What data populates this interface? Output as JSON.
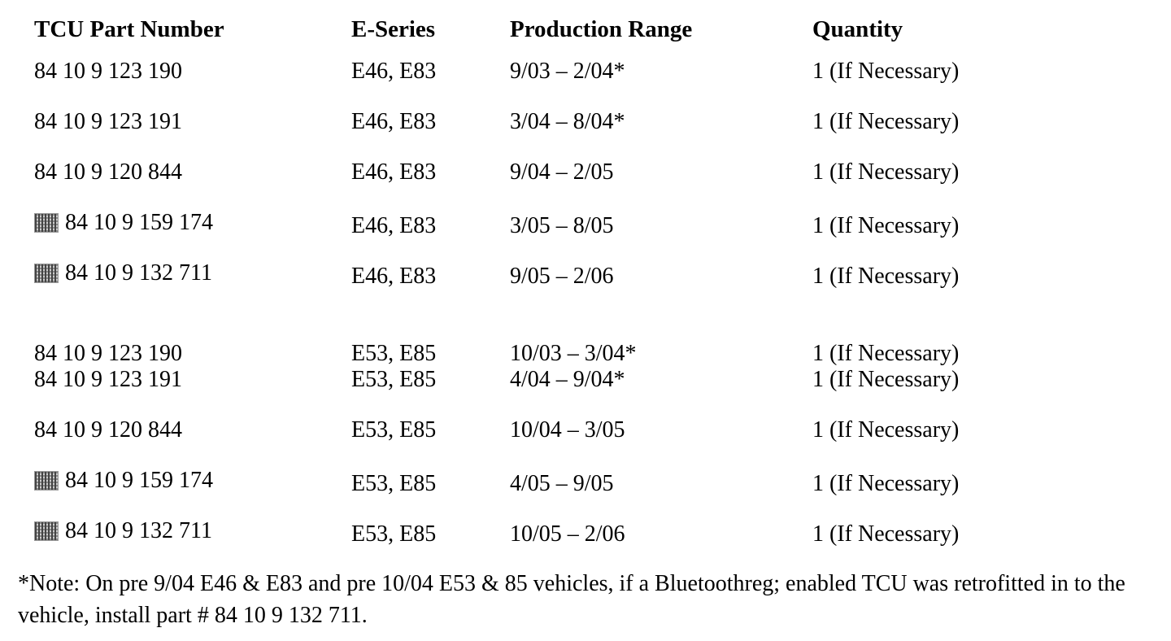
{
  "table": {
    "headers": [
      "TCU Part Number",
      "E-Series",
      "Production Range",
      "Quantity"
    ],
    "rows": [
      {
        "marker": false,
        "part": "84 10 9 123 190",
        "series": "E46, E83",
        "range": "9/03 – 2/04*",
        "qty": "1 (If Necessary)",
        "group_gap": false
      },
      {
        "marker": false,
        "part": "84 10 9 123 191",
        "series": "E46, E83",
        "range": "3/04 – 8/04*",
        "qty": "1 (If Necessary)",
        "group_gap": false
      },
      {
        "marker": false,
        "part": "84 10 9 120 844",
        "series": "E46, E83",
        "range": "9/04 – 2/05",
        "qty": "1 (If Necessary)",
        "group_gap": false
      },
      {
        "marker": true,
        "part": "84 10 9 159 174",
        "series": "E46, E83",
        "range": "3/05 – 8/05",
        "qty": "1 (If Necessary)",
        "group_gap": false
      },
      {
        "marker": true,
        "part": "84 10 9 132 711",
        "series": "E46, E83",
        "range": "9/05 – 2/06",
        "qty": "1 (If Necessary)",
        "group_gap": false
      },
      {
        "marker": false,
        "part": "84 10 9 123 190",
        "series": "E53, E85",
        "range": "10/03 – 3/04*",
        "qty": "1 (If Necessary)",
        "group_gap": true
      },
      {
        "marker": false,
        "part": "84 10 9 123 191",
        "series": "E53, E85",
        "range": "4/04 – 9/04*",
        "qty": "1 (If Necessary)",
        "group_gap": false
      },
      {
        "marker": false,
        "part": "84 10 9 120 844",
        "series": "E53, E85",
        "range": "10/04 – 3/05",
        "qty": "1 (If Necessary)",
        "group_gap": false
      },
      {
        "marker": true,
        "part": "84 10 9 159 174",
        "series": "E53, E85",
        "range": "4/05 – 9/05",
        "qty": "1 (If Necessary)",
        "group_gap": false
      },
      {
        "marker": true,
        "part": "84 10 9 132 711",
        "series": "E53, E85",
        "range": "10/05 – 2/06",
        "qty": "1 (If Necessary)",
        "group_gap": false
      }
    ]
  },
  "note": "*Note: On pre 9/04 E46 & E83 and pre 10/04 E53 & 85 vehicles, if a Bluetoothreg; enabled TCU was retrofitted in to the vehicle, install part # 84 10 9 132 711."
}
